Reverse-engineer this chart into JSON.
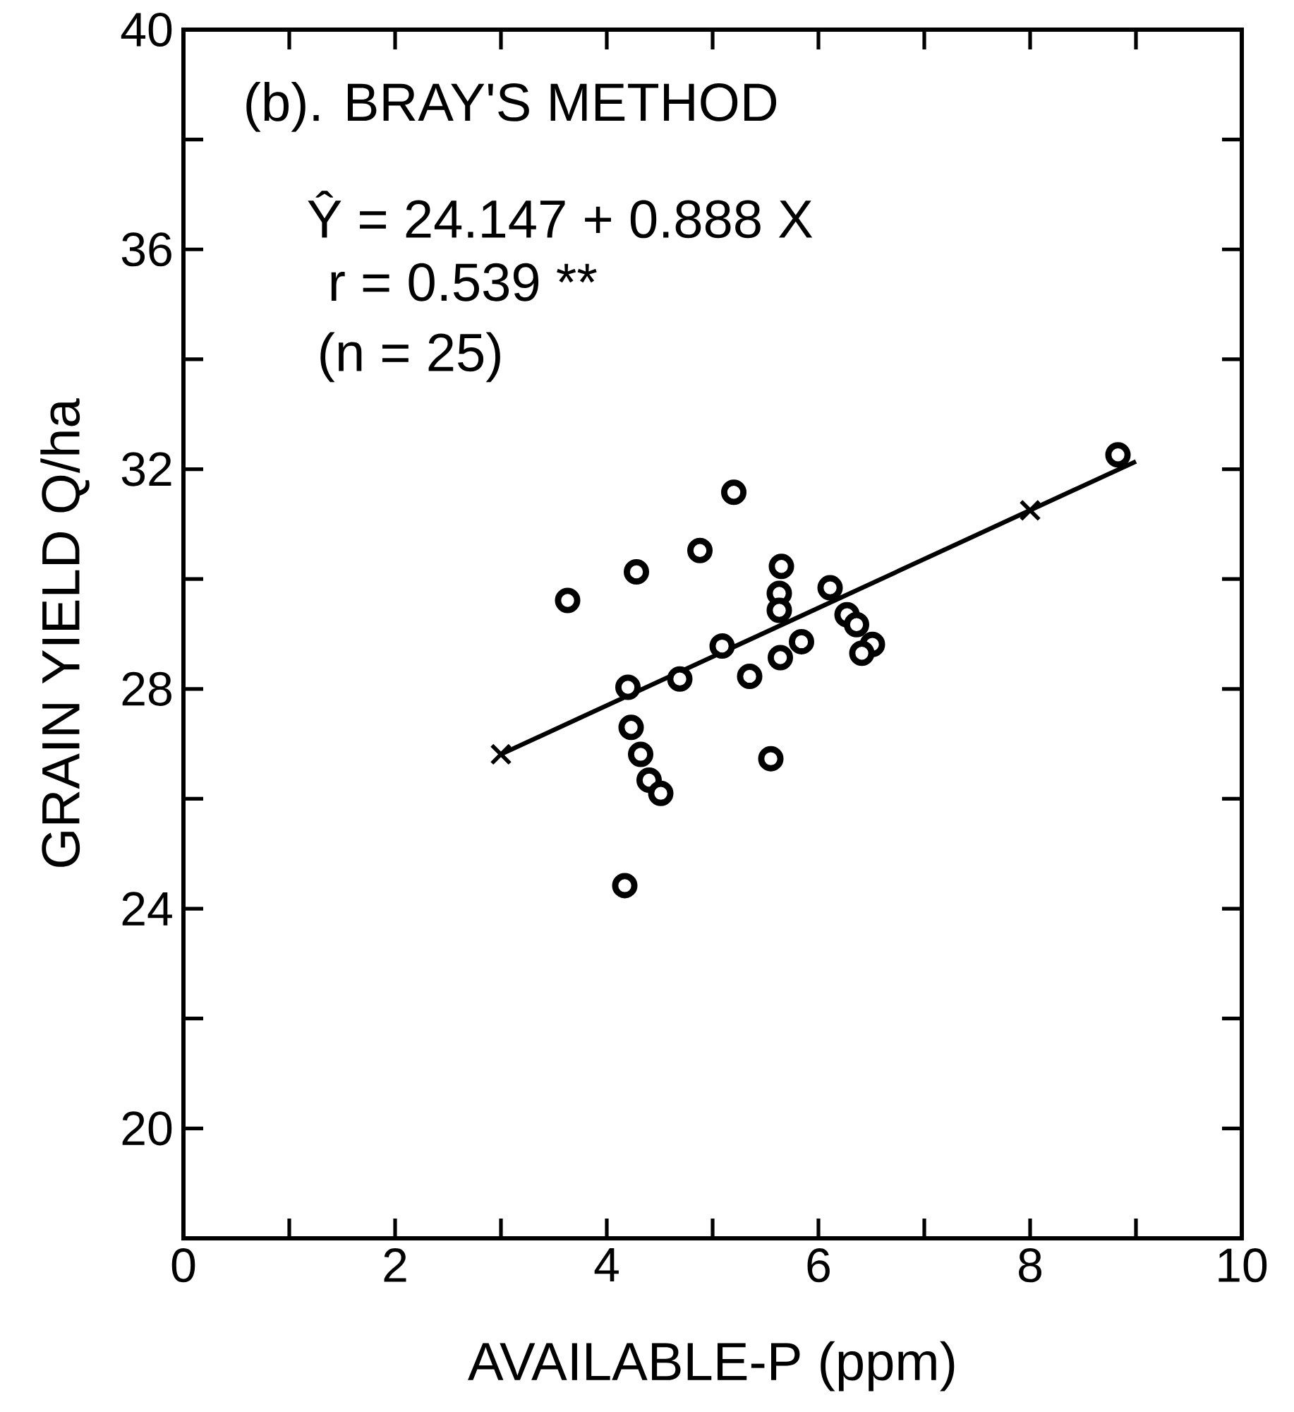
{
  "chart_data": {
    "type": "scatter",
    "title": "(b). BRAY'S METHOD",
    "xlabel": "AVAILABLE-P (ppm)",
    "ylabel": "GRAIN YIELD Q/ha",
    "annotations": [
      "Ŷ = 24.147 + 0.888 X",
      "r = 0.539 **",
      "(n = 25)"
    ],
    "xlim": [
      0,
      10
    ],
    "ylim": [
      18,
      40
    ],
    "xticks": [
      0,
      {
        "value": 1,
        "label": null
      },
      2,
      {
        "value": 3,
        "label": null
      },
      4,
      {
        "value": 5,
        "label": null
      },
      6,
      {
        "value": 7,
        "label": null
      },
      8,
      {
        "value": 9,
        "label": null
      },
      10
    ],
    "yticks": [
      20,
      {
        "value": 22,
        "label": null
      },
      24,
      {
        "value": 26,
        "label": null
      },
      28,
      {
        "value": 30,
        "label": null
      },
      32,
      {
        "value": 34,
        "label": null
      },
      36,
      {
        "value": 38,
        "label": null
      },
      40
    ],
    "grid": false,
    "series": [
      {
        "type": "scatter",
        "marker": "circle",
        "color": "#000000",
        "x": [
          5.2,
          4.88,
          4.28,
          3.63,
          5.65,
          5.63,
          5.63,
          6.11,
          6.27,
          6.36,
          6.51,
          6.41,
          5.84,
          5.64,
          5.09,
          5.35,
          4.69,
          4.2,
          4.23,
          4.32,
          4.4,
          4.51,
          5.55,
          4.17,
          8.83
        ],
        "values": [
          31.58,
          30.52,
          30.13,
          29.61,
          30.23,
          29.74,
          29.43,
          29.84,
          29.35,
          29.17,
          28.81,
          28.65,
          28.86,
          28.57,
          28.78,
          28.23,
          28.18,
          28.03,
          27.3,
          26.81,
          26.34,
          26.1,
          26.73,
          24.42,
          32.26
        ]
      },
      {
        "type": "line",
        "marker": "none",
        "line_style": "solid",
        "color": "#000000",
        "x": [
          3,
          9
        ],
        "values": [
          26.81,
          32.14
        ]
      },
      {
        "type": "scatter",
        "marker": "cross",
        "color": "#000000",
        "x": [
          3,
          8
        ],
        "values": [
          26.81,
          31.25
        ]
      }
    ]
  }
}
